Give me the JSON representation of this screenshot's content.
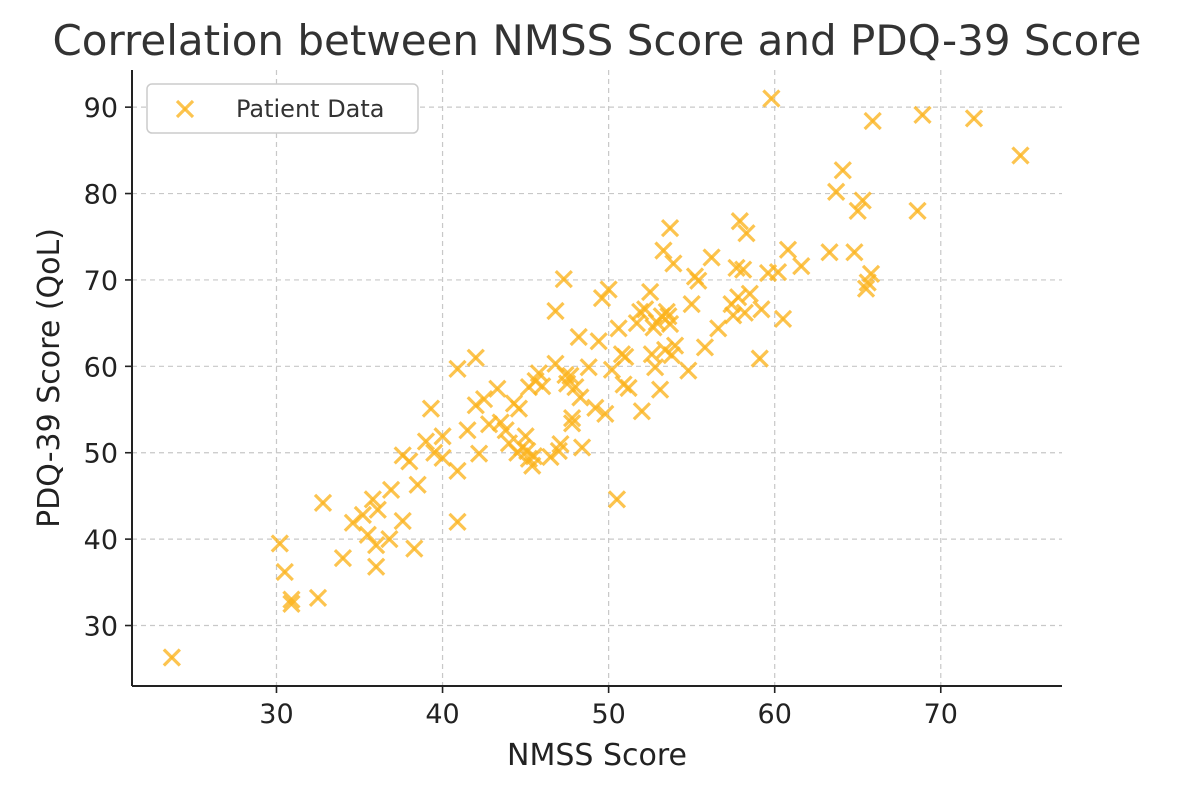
{
  "chart_data": {
    "type": "scatter",
    "title": "Correlation between NMSS Score and PDQ-39 Score",
    "xlabel": "NMSS Score",
    "ylabel": "PDQ-39 Score (QoL)",
    "xlim": [
      21.3,
      77.3
    ],
    "ylim": [
      23,
      94.3
    ],
    "xticks": [
      30,
      40,
      50,
      60,
      70
    ],
    "yticks": [
      30,
      40,
      50,
      60,
      70,
      80,
      90
    ],
    "grid": true,
    "marker": "x",
    "color": "#FBB41E",
    "legend_position": "top-left",
    "series": [
      {
        "name": "Patient Data",
        "points": [
          [
            23.7,
            26.3
          ],
          [
            30.2,
            39.5
          ],
          [
            30.5,
            36.2
          ],
          [
            30.9,
            32.5
          ],
          [
            30.9,
            33.0
          ],
          [
            32.5,
            33.2
          ],
          [
            32.8,
            44.2
          ],
          [
            34.0,
            37.8
          ],
          [
            34.6,
            41.9
          ],
          [
            35.2,
            42.8
          ],
          [
            35.5,
            40.5
          ],
          [
            35.8,
            44.6
          ],
          [
            36.0,
            39.3
          ],
          [
            36.1,
            43.4
          ],
          [
            36.0,
            36.8
          ],
          [
            36.8,
            40.0
          ],
          [
            36.9,
            45.7
          ],
          [
            37.6,
            42.1
          ],
          [
            37.6,
            49.7
          ],
          [
            38.0,
            49.0
          ],
          [
            38.3,
            38.9
          ],
          [
            38.5,
            46.3
          ],
          [
            39.0,
            51.3
          ],
          [
            39.3,
            55.1
          ],
          [
            39.5,
            50.0
          ],
          [
            40.0,
            51.9
          ],
          [
            40.0,
            49.4
          ],
          [
            40.9,
            42.0
          ],
          [
            40.9,
            47.9
          ],
          [
            40.9,
            59.7
          ],
          [
            41.5,
            52.6
          ],
          [
            42.0,
            61.0
          ],
          [
            42.0,
            55.5
          ],
          [
            42.2,
            49.9
          ],
          [
            42.5,
            56.2
          ],
          [
            42.8,
            53.3
          ],
          [
            43.3,
            57.4
          ],
          [
            43.5,
            53.5
          ],
          [
            43.8,
            52.6
          ],
          [
            44.0,
            51.1
          ],
          [
            44.3,
            55.7
          ],
          [
            44.5,
            50.0
          ],
          [
            44.6,
            55.1
          ],
          [
            44.8,
            50.6
          ],
          [
            45.0,
            51.9
          ],
          [
            45.1,
            50.2
          ],
          [
            45.2,
            49.3
          ],
          [
            45.2,
            57.6
          ],
          [
            45.4,
            48.5
          ],
          [
            45.5,
            49.6
          ],
          [
            45.6,
            58.3
          ],
          [
            45.8,
            59.2
          ],
          [
            46.0,
            57.7
          ],
          [
            46.5,
            49.5
          ],
          [
            46.8,
            60.3
          ],
          [
            46.8,
            66.4
          ],
          [
            47.0,
            50.2
          ],
          [
            47.1,
            51.0
          ],
          [
            47.3,
            70.1
          ],
          [
            47.4,
            59.0
          ],
          [
            47.5,
            58.0
          ],
          [
            47.7,
            58.9
          ],
          [
            47.8,
            54.0
          ],
          [
            47.8,
            53.4
          ],
          [
            48.0,
            57.6
          ],
          [
            48.2,
            63.4
          ],
          [
            48.3,
            56.4
          ],
          [
            48.4,
            50.6
          ],
          [
            48.8,
            59.9
          ],
          [
            49.2,
            55.2
          ],
          [
            49.4,
            62.9
          ],
          [
            49.6,
            67.9
          ],
          [
            49.8,
            54.5
          ],
          [
            50.0,
            68.9
          ],
          [
            50.2,
            59.6
          ],
          [
            50.5,
            44.6
          ],
          [
            50.6,
            64.4
          ],
          [
            50.8,
            61.4
          ],
          [
            50.9,
            57.9
          ],
          [
            51.0,
            61.1
          ],
          [
            51.2,
            57.5
          ],
          [
            51.7,
            65.0
          ],
          [
            51.9,
            66.3
          ],
          [
            52.0,
            54.8
          ],
          [
            52.2,
            66.6
          ],
          [
            52.5,
            68.6
          ],
          [
            52.6,
            61.4
          ],
          [
            52.7,
            64.5
          ],
          [
            52.8,
            59.9
          ],
          [
            52.9,
            65.1
          ],
          [
            53.1,
            57.3
          ],
          [
            53.2,
            65.8
          ],
          [
            53.3,
            73.4
          ],
          [
            53.4,
            61.9
          ],
          [
            53.5,
            66.3
          ],
          [
            53.6,
            65.8
          ],
          [
            53.7,
            64.9
          ],
          [
            53.8,
            61.3
          ],
          [
            53.9,
            71.9
          ],
          [
            54.0,
            62.4
          ],
          [
            53.7,
            76.0
          ],
          [
            54.8,
            59.5
          ],
          [
            55.0,
            67.2
          ],
          [
            55.2,
            70.4
          ],
          [
            55.4,
            69.9
          ],
          [
            55.8,
            62.2
          ],
          [
            56.2,
            72.6
          ],
          [
            56.6,
            64.4
          ],
          [
            57.4,
            67.2
          ],
          [
            57.5,
            65.9
          ],
          [
            57.7,
            71.4
          ],
          [
            57.8,
            68.0
          ],
          [
            57.9,
            76.8
          ],
          [
            58.1,
            71.2
          ],
          [
            58.2,
            66.2
          ],
          [
            58.3,
            75.4
          ],
          [
            58.5,
            68.4
          ],
          [
            59.1,
            60.9
          ],
          [
            59.2,
            66.6
          ],
          [
            59.6,
            70.8
          ],
          [
            59.8,
            91.0
          ],
          [
            60.2,
            70.9
          ],
          [
            60.5,
            65.5
          ],
          [
            60.8,
            73.5
          ],
          [
            61.6,
            71.6
          ],
          [
            63.3,
            73.2
          ],
          [
            63.7,
            80.2
          ],
          [
            64.1,
            82.7
          ],
          [
            64.8,
            73.2
          ],
          [
            65.0,
            78.0
          ],
          [
            65.3,
            79.2
          ],
          [
            65.5,
            69.0
          ],
          [
            65.6,
            69.7
          ],
          [
            65.8,
            70.7
          ],
          [
            65.9,
            88.4
          ],
          [
            68.6,
            78.0
          ],
          [
            68.9,
            89.1
          ],
          [
            72.0,
            88.7
          ],
          [
            74.8,
            84.4
          ]
        ]
      }
    ]
  }
}
